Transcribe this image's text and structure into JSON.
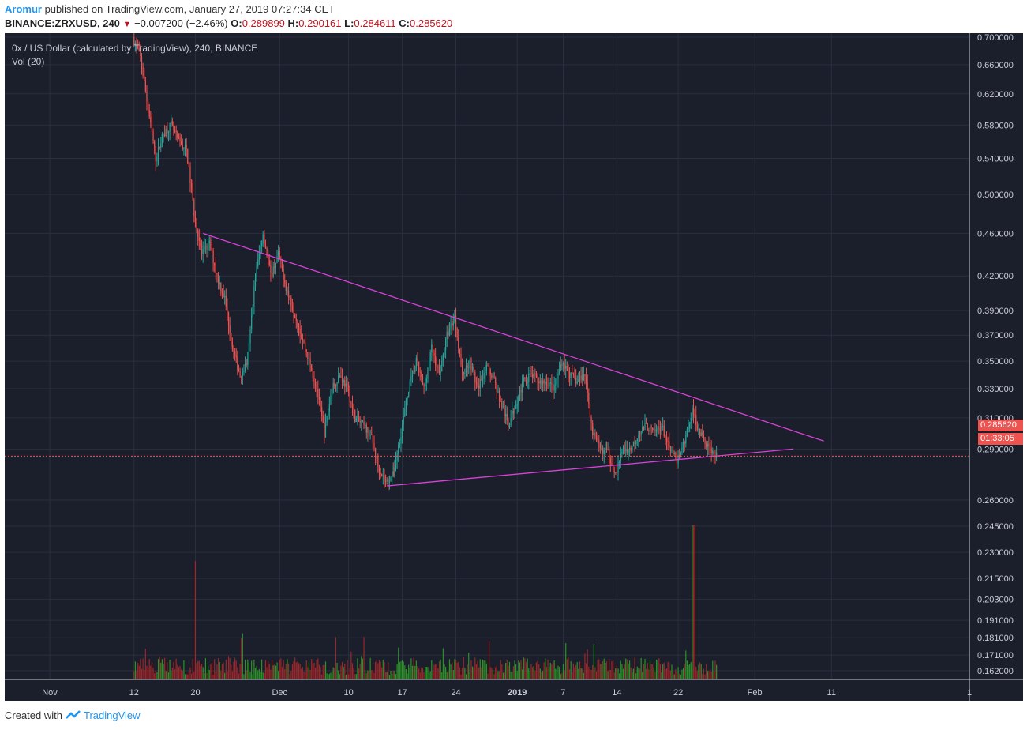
{
  "header": {
    "author": "Aromur",
    "published_text": "published on TradingView.com, January 27, 2019 07:27:34 CET",
    "symbol": "BINANCE:ZRXUSD, 240",
    "change_arrow": "▼",
    "change": "−0.007200 (−2.46%)",
    "o_label": "O:",
    "o": "0.289899",
    "h_label": "H:",
    "h": "0.290161",
    "l_label": "L:",
    "l": "0.284611",
    "c_label": "C:",
    "c": "0.285620"
  },
  "legend": {
    "title": "0x / US Dollar (calculated by TradingView), 240, BINANCE",
    "vol": "Vol (20)"
  },
  "price_tags": {
    "last": "0.285620",
    "timer": "01:33:05"
  },
  "footer": {
    "created_with": "Created with",
    "brand": "TradingView"
  },
  "colors": {
    "background": "#1b1e2b",
    "grid": "#2b2f3e",
    "up": "#26a69a",
    "down": "#ef5350",
    "vol_up": "#2e9e26",
    "vol_down": "#a8282a",
    "trendline": "#d742d7",
    "axis_text": "#c9ccd6"
  },
  "chart_data": {
    "type": "candlestick",
    "symbol": "ZRXUSD",
    "interval": "240",
    "y_axis_ticks": [
      "0.700000",
      "0.660000",
      "0.620000",
      "0.580000",
      "0.540000",
      "0.500000",
      "0.460000",
      "0.420000",
      "0.390000",
      "0.370000",
      "0.350000",
      "0.330000",
      "0.310000",
      "0.290000",
      "0.260000",
      "0.245000",
      "0.230000",
      "0.215000",
      "0.203000",
      "0.191000",
      "0.181000",
      "0.171000",
      "0.162000"
    ],
    "x_axis_labels": [
      {
        "label": "Nov",
        "date": "2018-11-01"
      },
      {
        "label": "12",
        "date": "2018-11-12"
      },
      {
        "label": "20",
        "date": "2018-11-20"
      },
      {
        "label": "Dec",
        "date": "2018-12-01"
      },
      {
        "label": "10",
        "date": "2018-12-10"
      },
      {
        "label": "17",
        "date": "2018-12-17"
      },
      {
        "label": "24",
        "date": "2018-12-24"
      },
      {
        "label": "2019",
        "date": "2019-01-01"
      },
      {
        "label": "7",
        "date": "2019-01-07"
      },
      {
        "label": "14",
        "date": "2019-01-14"
      },
      {
        "label": "22",
        "date": "2019-01-22"
      },
      {
        "label": "Feb",
        "date": "2019-02-01"
      },
      {
        "label": "11",
        "date": "2019-02-11"
      },
      {
        "label": "1",
        "date": "2019-03-01"
      }
    ],
    "last_price": 0.28562,
    "price_path": [
      {
        "date": "2018-11-12",
        "price": 0.7
      },
      {
        "date": "2018-11-13",
        "price": 0.67
      },
      {
        "date": "2018-11-14",
        "price": 0.6
      },
      {
        "date": "2018-11-15",
        "price": 0.54
      },
      {
        "date": "2018-11-16",
        "price": 0.57
      },
      {
        "date": "2018-11-17",
        "price": 0.58
      },
      {
        "date": "2018-11-18",
        "price": 0.56
      },
      {
        "date": "2018-11-19",
        "price": 0.55
      },
      {
        "date": "2018-11-20",
        "price": 0.48
      },
      {
        "date": "2018-11-21",
        "price": 0.44
      },
      {
        "date": "2018-11-22",
        "price": 0.45
      },
      {
        "date": "2018-11-23",
        "price": 0.42
      },
      {
        "date": "2018-11-24",
        "price": 0.4
      },
      {
        "date": "2018-11-25",
        "price": 0.36
      },
      {
        "date": "2018-11-26",
        "price": 0.34
      },
      {
        "date": "2018-11-27",
        "price": 0.35
      },
      {
        "date": "2018-11-28",
        "price": 0.42
      },
      {
        "date": "2018-11-29",
        "price": 0.46
      },
      {
        "date": "2018-11-30",
        "price": 0.42
      },
      {
        "date": "2018-12-01",
        "price": 0.44
      },
      {
        "date": "2018-12-02",
        "price": 0.41
      },
      {
        "date": "2018-12-03",
        "price": 0.39
      },
      {
        "date": "2018-12-04",
        "price": 0.37
      },
      {
        "date": "2018-12-05",
        "price": 0.35
      },
      {
        "date": "2018-12-06",
        "price": 0.33
      },
      {
        "date": "2018-12-07",
        "price": 0.3
      },
      {
        "date": "2018-12-08",
        "price": 0.33
      },
      {
        "date": "2018-12-09",
        "price": 0.34
      },
      {
        "date": "2018-12-10",
        "price": 0.33
      },
      {
        "date": "2018-12-11",
        "price": 0.31
      },
      {
        "date": "2018-12-12",
        "price": 0.305
      },
      {
        "date": "2018-12-13",
        "price": 0.3
      },
      {
        "date": "2018-12-14",
        "price": 0.28
      },
      {
        "date": "2018-12-15",
        "price": 0.27
      },
      {
        "date": "2018-12-16",
        "price": 0.275
      },
      {
        "date": "2018-12-17",
        "price": 0.3
      },
      {
        "date": "2018-12-18",
        "price": 0.33
      },
      {
        "date": "2018-12-19",
        "price": 0.35
      },
      {
        "date": "2018-12-20",
        "price": 0.33
      },
      {
        "date": "2018-12-21",
        "price": 0.36
      },
      {
        "date": "2018-12-22",
        "price": 0.34
      },
      {
        "date": "2018-12-23",
        "price": 0.37
      },
      {
        "date": "2018-12-24",
        "price": 0.385
      },
      {
        "date": "2018-12-25",
        "price": 0.34
      },
      {
        "date": "2018-12-26",
        "price": 0.35
      },
      {
        "date": "2018-12-27",
        "price": 0.33
      },
      {
        "date": "2018-12-28",
        "price": 0.345
      },
      {
        "date": "2018-12-29",
        "price": 0.34
      },
      {
        "date": "2018-12-30",
        "price": 0.32
      },
      {
        "date": "2018-12-31",
        "price": 0.305
      },
      {
        "date": "2019-01-01",
        "price": 0.32
      },
      {
        "date": "2019-01-02",
        "price": 0.335
      },
      {
        "date": "2019-01-03",
        "price": 0.34
      },
      {
        "date": "2019-01-04",
        "price": 0.335
      },
      {
        "date": "2019-01-05",
        "price": 0.335
      },
      {
        "date": "2019-01-06",
        "price": 0.33
      },
      {
        "date": "2019-01-07",
        "price": 0.35
      },
      {
        "date": "2019-01-08",
        "price": 0.34
      },
      {
        "date": "2019-01-09",
        "price": 0.335
      },
      {
        "date": "2019-01-10",
        "price": 0.34
      },
      {
        "date": "2019-01-11",
        "price": 0.3
      },
      {
        "date": "2019-01-12",
        "price": 0.29
      },
      {
        "date": "2019-01-13",
        "price": 0.288
      },
      {
        "date": "2019-01-14",
        "price": 0.275
      },
      {
        "date": "2019-01-15",
        "price": 0.29
      },
      {
        "date": "2019-01-16",
        "price": 0.29
      },
      {
        "date": "2019-01-17",
        "price": 0.3
      },
      {
        "date": "2019-01-18",
        "price": 0.305
      },
      {
        "date": "2019-01-19",
        "price": 0.3
      },
      {
        "date": "2019-01-20",
        "price": 0.305
      },
      {
        "date": "2019-01-21",
        "price": 0.29
      },
      {
        "date": "2019-01-22",
        "price": 0.283
      },
      {
        "date": "2019-01-23",
        "price": 0.295
      },
      {
        "date": "2019-01-24",
        "price": 0.315
      },
      {
        "date": "2019-01-25",
        "price": 0.3
      },
      {
        "date": "2019-01-26",
        "price": 0.292
      },
      {
        "date": "2019-01-27",
        "price": 0.28562
      }
    ],
    "trendlines": [
      {
        "from": {
          "date": "2018-11-21",
          "price": 0.46
        },
        "to": {
          "date": "2019-02-10",
          "price": 0.295
        }
      },
      {
        "from": {
          "date": "2018-12-15",
          "price": 0.268
        },
        "to": {
          "date": "2019-02-06",
          "price": 0.29
        }
      }
    ],
    "volume": {
      "max": 0.23,
      "spike_date": "2019-01-24"
    },
    "grid": true
  }
}
